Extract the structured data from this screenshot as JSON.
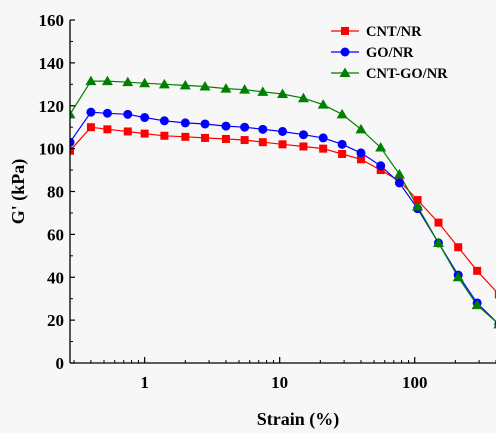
{
  "chart_data": {
    "type": "line",
    "xlabel": "Strain (%)",
    "ylabel": "G' (kPa)",
    "xscale": "log",
    "xlim": [
      0.28,
      400
    ],
    "ylim": [
      0,
      160
    ],
    "xticks": [
      {
        "value": 1,
        "label": "1"
      },
      {
        "value": 10,
        "label": "10"
      },
      {
        "value": 100,
        "label": "100"
      }
    ],
    "yticks": [
      {
        "value": 0,
        "label": "0"
      },
      {
        "value": 20,
        "label": "20"
      },
      {
        "value": 40,
        "label": "40"
      },
      {
        "value": 60,
        "label": "60"
      },
      {
        "value": 80,
        "label": "80"
      },
      {
        "value": 100,
        "label": "100"
      },
      {
        "value": 120,
        "label": "120"
      },
      {
        "value": 140,
        "label": "140"
      },
      {
        "value": 160,
        "label": "160"
      }
    ],
    "legend_position": "top-right",
    "grid": false,
    "series": [
      {
        "name": "CNT/NR",
        "color": "#ff0000",
        "marker": "square",
        "x": [
          0.28,
          0.4,
          0.53,
          0.75,
          1.0,
          1.4,
          2.0,
          2.8,
          4.0,
          5.5,
          7.5,
          10.5,
          15,
          21,
          29,
          40,
          56,
          77,
          105,
          150,
          210,
          290,
          420
        ],
        "y": [
          99,
          110,
          109,
          108,
          107,
          106,
          105.5,
          105,
          104.5,
          104,
          103,
          102,
          101,
          100,
          97.5,
          95,
          90,
          85,
          76,
          65.5,
          54,
          43,
          32
        ]
      },
      {
        "name": "GO/NR",
        "color": "#0000ff",
        "marker": "circle",
        "x": [
          0.28,
          0.4,
          0.53,
          0.75,
          1.0,
          1.4,
          2.0,
          2.8,
          4.0,
          5.5,
          7.5,
          10.5,
          15,
          21,
          29,
          40,
          56,
          77,
          105,
          150,
          210,
          290,
          420
        ],
        "y": [
          103,
          117,
          116.5,
          116,
          114.5,
          113,
          112,
          111.5,
          110.5,
          110,
          109,
          108,
          106.5,
          105,
          102,
          98,
          92,
          84,
          72,
          56,
          41,
          28,
          18
        ]
      },
      {
        "name": "CNT-GO/NR",
        "color": "#008000",
        "marker": "triangle",
        "x": [
          0.28,
          0.4,
          0.53,
          0.75,
          1.0,
          1.4,
          2.0,
          2.8,
          4.0,
          5.5,
          7.5,
          10.5,
          15,
          21,
          29,
          40,
          56,
          77,
          105,
          150,
          210,
          290,
          420
        ],
        "y": [
          116,
          131.5,
          131.5,
          131,
          130.5,
          130,
          129.5,
          129,
          128,
          127.5,
          126.5,
          125.5,
          123.5,
          120.5,
          116,
          109,
          100.5,
          88,
          73,
          56,
          40,
          27,
          18
        ]
      }
    ]
  }
}
